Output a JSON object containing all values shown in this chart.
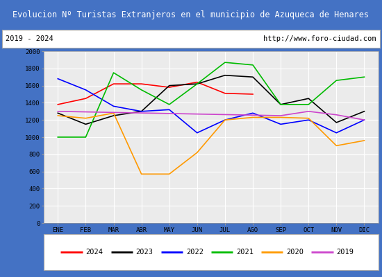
{
  "title": "Evolucion Nº Turistas Extranjeros en el municipio de Azuqueca de Henares",
  "subtitle_left": "2019 - 2024",
  "subtitle_right": "http://www.foro-ciudad.com",
  "months": [
    "ENE",
    "FEB",
    "MAR",
    "ABR",
    "MAY",
    "JUN",
    "JUL",
    "AGO",
    "SEP",
    "OCT",
    "NOV",
    "DIC"
  ],
  "ylim": [
    0,
    2000
  ],
  "yticks": [
    0,
    200,
    400,
    600,
    800,
    1000,
    1200,
    1400,
    1600,
    1800,
    2000
  ],
  "series": {
    "2024": {
      "color": "#ff0000",
      "values": [
        1380,
        1450,
        1620,
        1620,
        1580,
        1640,
        1510,
        1500,
        null,
        null,
        null,
        null
      ]
    },
    "2023": {
      "color": "#000000",
      "values": [
        1280,
        1150,
        1250,
        1300,
        1600,
        1620,
        1720,
        1700,
        1380,
        1450,
        1170,
        1300
      ]
    },
    "2022": {
      "color": "#0000ff",
      "values": [
        1680,
        1550,
        1360,
        1300,
        1320,
        1050,
        1200,
        1280,
        1150,
        1200,
        1050,
        1200
      ]
    },
    "2021": {
      "color": "#00bb00",
      "values": [
        1000,
        1000,
        1750,
        1550,
        1380,
        1620,
        1870,
        1840,
        1380,
        1380,
        1660,
        1700
      ]
    },
    "2020": {
      "color": "#ff9900",
      "values": [
        1250,
        1220,
        1280,
        570,
        570,
        820,
        1200,
        1230,
        1230,
        1220,
        900,
        960
      ]
    },
    "2019": {
      "color": "#cc44cc",
      "values": [
        1300,
        null,
        null,
        null,
        null,
        null,
        null,
        null,
        1250,
        1300,
        1260,
        1200
      ]
    }
  },
  "title_bg": "#4472c4",
  "title_color": "#ffffff",
  "plot_bg": "#ebebeb",
  "border_color": "#4472c4",
  "grid_color": "#ffffff",
  "subtitle_bg": "#ffffff"
}
